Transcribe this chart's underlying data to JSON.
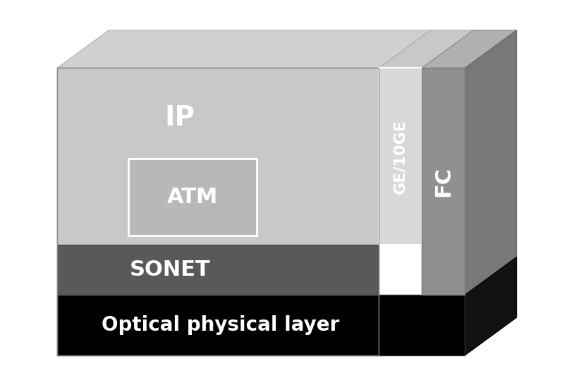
{
  "bg_color": "#ffffff",
  "ip_color": "#c8c8c8",
  "ip_text": "IP",
  "ip_text_color": "#ffffff",
  "ip_fontsize": 28,
  "sonet_color": "#595959",
  "sonet_text": "SONET",
  "sonet_text_color": "#ffffff",
  "sonet_fontsize": 22,
  "atm_color": "#b8b8b8",
  "atm_text": "ATM",
  "atm_text_color": "#ffffff",
  "atm_fontsize": 22,
  "atm_border_color": "#ffffff",
  "ge_color": "#d8d8d8",
  "ge_text": "GE/10GE",
  "ge_text_color": "#ffffff",
  "ge_fontsize": 16,
  "ge_border_color": "#ffffff",
  "fc_color": "#909090",
  "fc_text": "FC",
  "fc_text_color": "#ffffff",
  "fc_fontsize": 22,
  "optical_color": "#000000",
  "optical_text": "Optical physical layer",
  "optical_text_color": "#ffffff",
  "optical_fontsize": 20,
  "top_face_color": "#d0d0d0",
  "left_face_color": "#b8b8b8",
  "fc_right_face_color": "#787878",
  "optical_right_face_color": "#111111",
  "fc_top_face_color": "#b0b0b0",
  "ge_top_face_color": "#c8c8c8"
}
